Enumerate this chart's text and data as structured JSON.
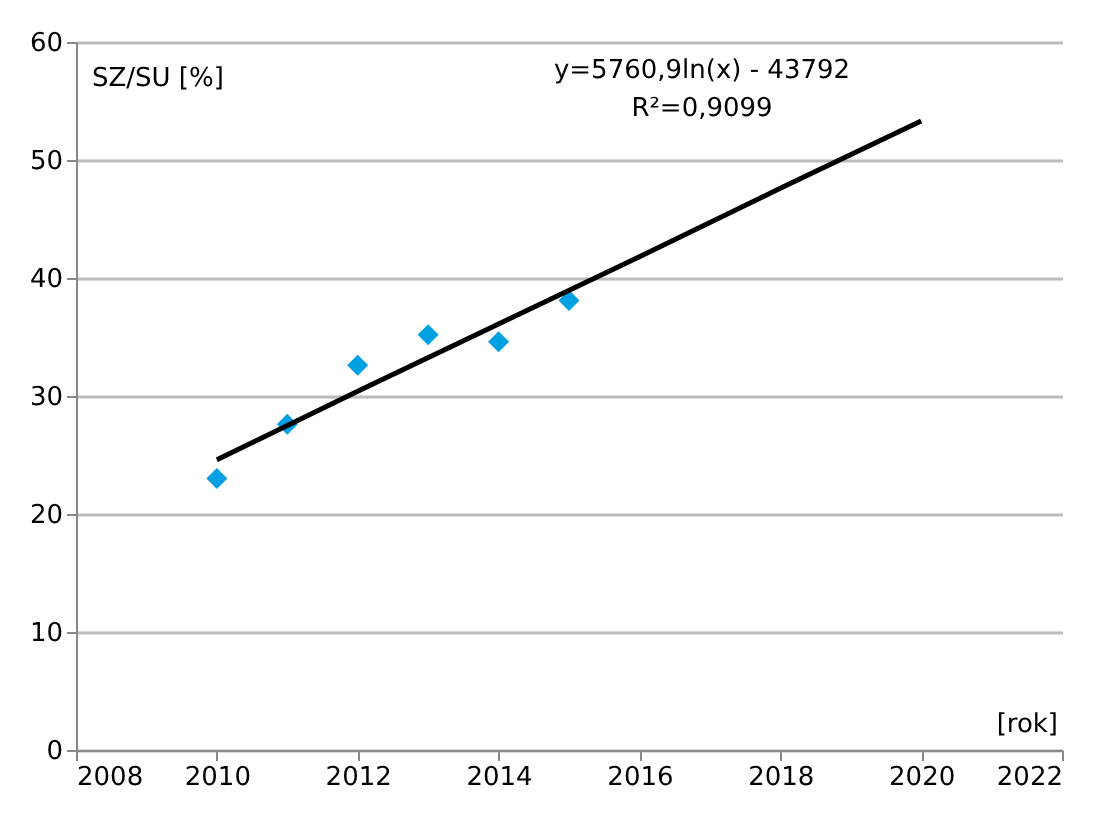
{
  "chart_data": {
    "type": "scatter",
    "xlabel": "[rok]",
    "ylabel": "SZ/SU [%]",
    "series": [
      {
        "color": "#00a0e3",
        "x": [
          2010,
          2011,
          2012,
          2013,
          2014,
          2015
        ],
        "values": [
          23.0,
          27.6,
          32.6,
          35.2,
          34.6,
          38.1
        ],
        "marker": "diamond"
      },
      {
        "type": "line",
        "color": "#000000",
        "x": [
          2010,
          2012,
          2014,
          2016,
          2018,
          2020
        ],
        "values": [
          24.6,
          30.4,
          36.1,
          41.8,
          47.6,
          53.3
        ],
        "line_style": "solid"
      }
    ],
    "annotations": [
      "y=5760,9ln(x) - 43792",
      "R²=0,9099"
    ],
    "xlim": [
      2008,
      2022
    ],
    "xticks": [
      2008,
      2010,
      2012,
      2014,
      2016,
      2018,
      2020,
      2022
    ],
    "ylim": [
      0,
      60
    ],
    "yticks": [
      0,
      10,
      20,
      30,
      40,
      50,
      60
    ],
    "grid": "y"
  }
}
